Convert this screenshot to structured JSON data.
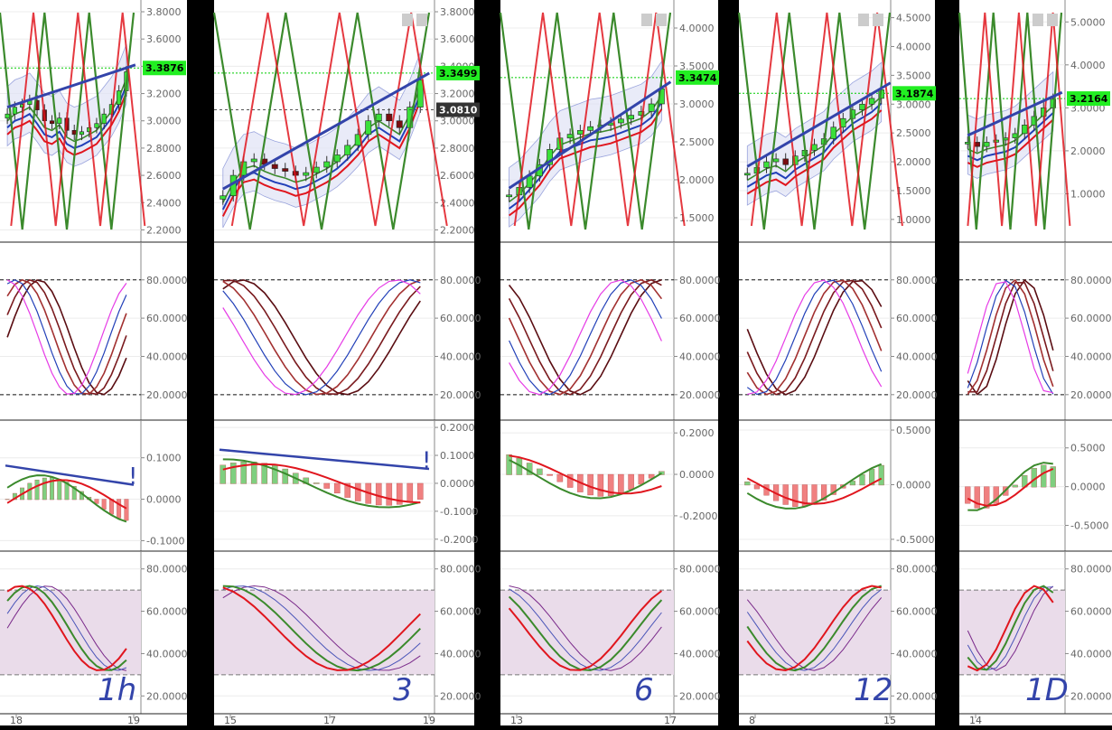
{
  "colors": {
    "background": "#000000",
    "panel": "#ffffff",
    "grid": "#ececec",
    "price_tag": "#22ee22",
    "price_line": "#00cc00",
    "green_line": "#3b8a2c",
    "red_line": "#e0161e",
    "blue_line": "#2240b8",
    "pink_line": "#e63be6",
    "purple_line": "#7a2a8a",
    "band_fill": "#dfe2f5",
    "rsi_band": "#eadcea",
    "candle_up": "#3ae03a",
    "candle_down": "#7a0d10",
    "annot_blue": "#3344aa"
  },
  "icons": [
    "zoom-in-icon",
    "zoom-out-icon"
  ],
  "chart_data": [
    {
      "type": "candlestick",
      "timeframe_annotation": "1h",
      "divergence_mark": "!",
      "price": {
        "yticks": [
          "3.8000",
          "3.6000",
          "3.4000",
          "3.2000",
          "3.0000",
          "2.8000",
          "2.6000",
          "2.4000",
          "2.2000"
        ],
        "current_price": "3.3876",
        "ylim": [
          2.15,
          3.82
        ],
        "closes": [
          3.05,
          3.1,
          3.12,
          3.15,
          3.08,
          3.0,
          2.98,
          3.02,
          2.93,
          2.9,
          2.92,
          2.95,
          2.98,
          3.05,
          3.12,
          3.22,
          3.36
        ]
      },
      "oscillator": {
        "yticks": [
          "80.0000",
          "60.0000",
          "40.0000",
          "20.0000"
        ],
        "ylim": [
          10,
          95
        ],
        "dashed_levels": [
          80,
          20
        ]
      },
      "macd": {
        "yticks": [
          "0.1000",
          "0.0000",
          "-0.1000"
        ],
        "ylim": [
          -0.11,
          0.18
        ]
      },
      "rsi": {
        "yticks": [
          "80.0000",
          "60.0000",
          "40.0000",
          "20.0000"
        ],
        "ylim": [
          15,
          85
        ],
        "band": [
          30,
          70
        ]
      },
      "xticks": [
        "18",
        "19"
      ]
    },
    {
      "type": "candlestick",
      "timeframe_annotation": "3",
      "divergence_mark": "!",
      "price": {
        "yticks": [
          "3.8000",
          "3.6000",
          "3.4000",
          "3.2000",
          "3.0000",
          "2.8000",
          "2.6000",
          "2.4000",
          "2.2000"
        ],
        "current_price": "3.3499",
        "reference_price": "3.0810",
        "ylim": [
          2.15,
          3.82
        ],
        "closes": [
          2.45,
          2.6,
          2.7,
          2.72,
          2.68,
          2.65,
          2.63,
          2.6,
          2.62,
          2.66,
          2.7,
          2.75,
          2.82,
          2.9,
          3.0,
          3.05,
          3.0,
          2.95,
          3.1,
          3.3
        ]
      },
      "oscillator": {
        "yticks": [
          "80.0000",
          "60.0000",
          "40.0000",
          "20.0000"
        ],
        "ylim": [
          10,
          95
        ],
        "dashed_levels": [
          80,
          20
        ]
      },
      "macd": {
        "yticks": [
          "0.2000",
          "0.1000",
          "0.0000",
          "-0.1000",
          "-0.2000"
        ],
        "ylim": [
          -0.22,
          0.21
        ]
      },
      "rsi": {
        "yticks": [
          "80.0000",
          "60.0000",
          "40.0000",
          "20.0000"
        ],
        "ylim": [
          15,
          85
        ],
        "band": [
          30,
          70
        ]
      },
      "xticks": [
        "15",
        "17",
        "19"
      ]
    },
    {
      "type": "candlestick",
      "timeframe_annotation": "6",
      "price": {
        "yticks": [
          "4.0000",
          "3.5000",
          "3.0000",
          "2.5000",
          "2.0000",
          "1.5000"
        ],
        "current_price": "3.3474",
        "ylim": [
          1.25,
          4.25
        ],
        "closes": [
          1.8,
          1.9,
          2.05,
          2.2,
          2.4,
          2.55,
          2.6,
          2.65,
          2.7,
          2.72,
          2.75,
          2.8,
          2.85,
          2.9,
          3.0,
          3.2
        ]
      },
      "oscillator": {
        "yticks": [
          "80.0000",
          "60.0000",
          "40.0000",
          "20.0000"
        ],
        "ylim": [
          10,
          95
        ],
        "dashed_levels": [
          80,
          20
        ]
      },
      "macd": {
        "yticks": [
          "0.2000",
          "0.0000",
          "-0.2000"
        ],
        "ylim": [
          -0.34,
          0.24
        ]
      },
      "rsi": {
        "yticks": [
          "80.0000",
          "60.0000",
          "40.0000",
          "20.0000"
        ],
        "ylim": [
          15,
          85
        ],
        "band": [
          30,
          70
        ]
      },
      "xticks": [
        "13",
        "17"
      ]
    },
    {
      "type": "candlestick",
      "timeframe_annotation": "12",
      "price": {
        "yticks": [
          "4.5000",
          "4.0000",
          "3.5000",
          "3.0000",
          "2.5000",
          "2.0000",
          "1.5000",
          "1.0000"
        ],
        "current_price": "3.1874",
        "ylim": [
          0.7,
          4.65
        ],
        "closes": [
          1.8,
          1.9,
          2.0,
          2.05,
          1.95,
          2.1,
          2.2,
          2.3,
          2.4,
          2.6,
          2.75,
          2.9,
          3.0,
          3.1,
          3.25
        ]
      },
      "oscillator": {
        "yticks": [
          "80.0000",
          "60.0000",
          "40.0000",
          "20.0000"
        ],
        "ylim": [
          10,
          95
        ],
        "dashed_levels": [
          80,
          20
        ]
      },
      "macd": {
        "yticks": [
          "0.5000",
          "0.0000",
          "-0.5000"
        ],
        "ylim": [
          -0.55,
          0.55
        ]
      },
      "rsi": {
        "yticks": [
          "80.0000",
          "60.0000",
          "40.0000",
          "20.0000"
        ],
        "ylim": [
          15,
          85
        ],
        "band": [
          30,
          70
        ]
      },
      "xticks": [
        "8",
        "15"
      ]
    },
    {
      "type": "candlestick",
      "timeframe_annotation": "1D",
      "price": {
        "yticks": [
          "5.0000",
          "4.0000",
          "3.0000",
          "2.0000",
          "1.0000"
        ],
        "current_price": "3.2164",
        "ylim": [
          0,
          5.3
        ],
        "closes": [
          2.2,
          2.1,
          2.2,
          2.25,
          2.3,
          2.4,
          2.6,
          2.8,
          3.0,
          3.2
        ]
      },
      "oscillator": {
        "yticks": [
          "80.0000",
          "60.0000",
          "40.0000",
          "20.0000"
        ],
        "ylim": [
          10,
          95
        ],
        "dashed_levels": [
          80,
          20
        ]
      },
      "macd": {
        "yticks": [
          "0.5000",
          "0.0000",
          "-0.5000"
        ],
        "ylim": [
          -0.75,
          0.8
        ]
      },
      "rsi": {
        "yticks": [
          "80.0000",
          "60.0000",
          "40.0000",
          "20.0000"
        ],
        "ylim": [
          15,
          85
        ],
        "band": [
          30,
          70
        ]
      },
      "xticks": [
        "14"
      ]
    }
  ]
}
